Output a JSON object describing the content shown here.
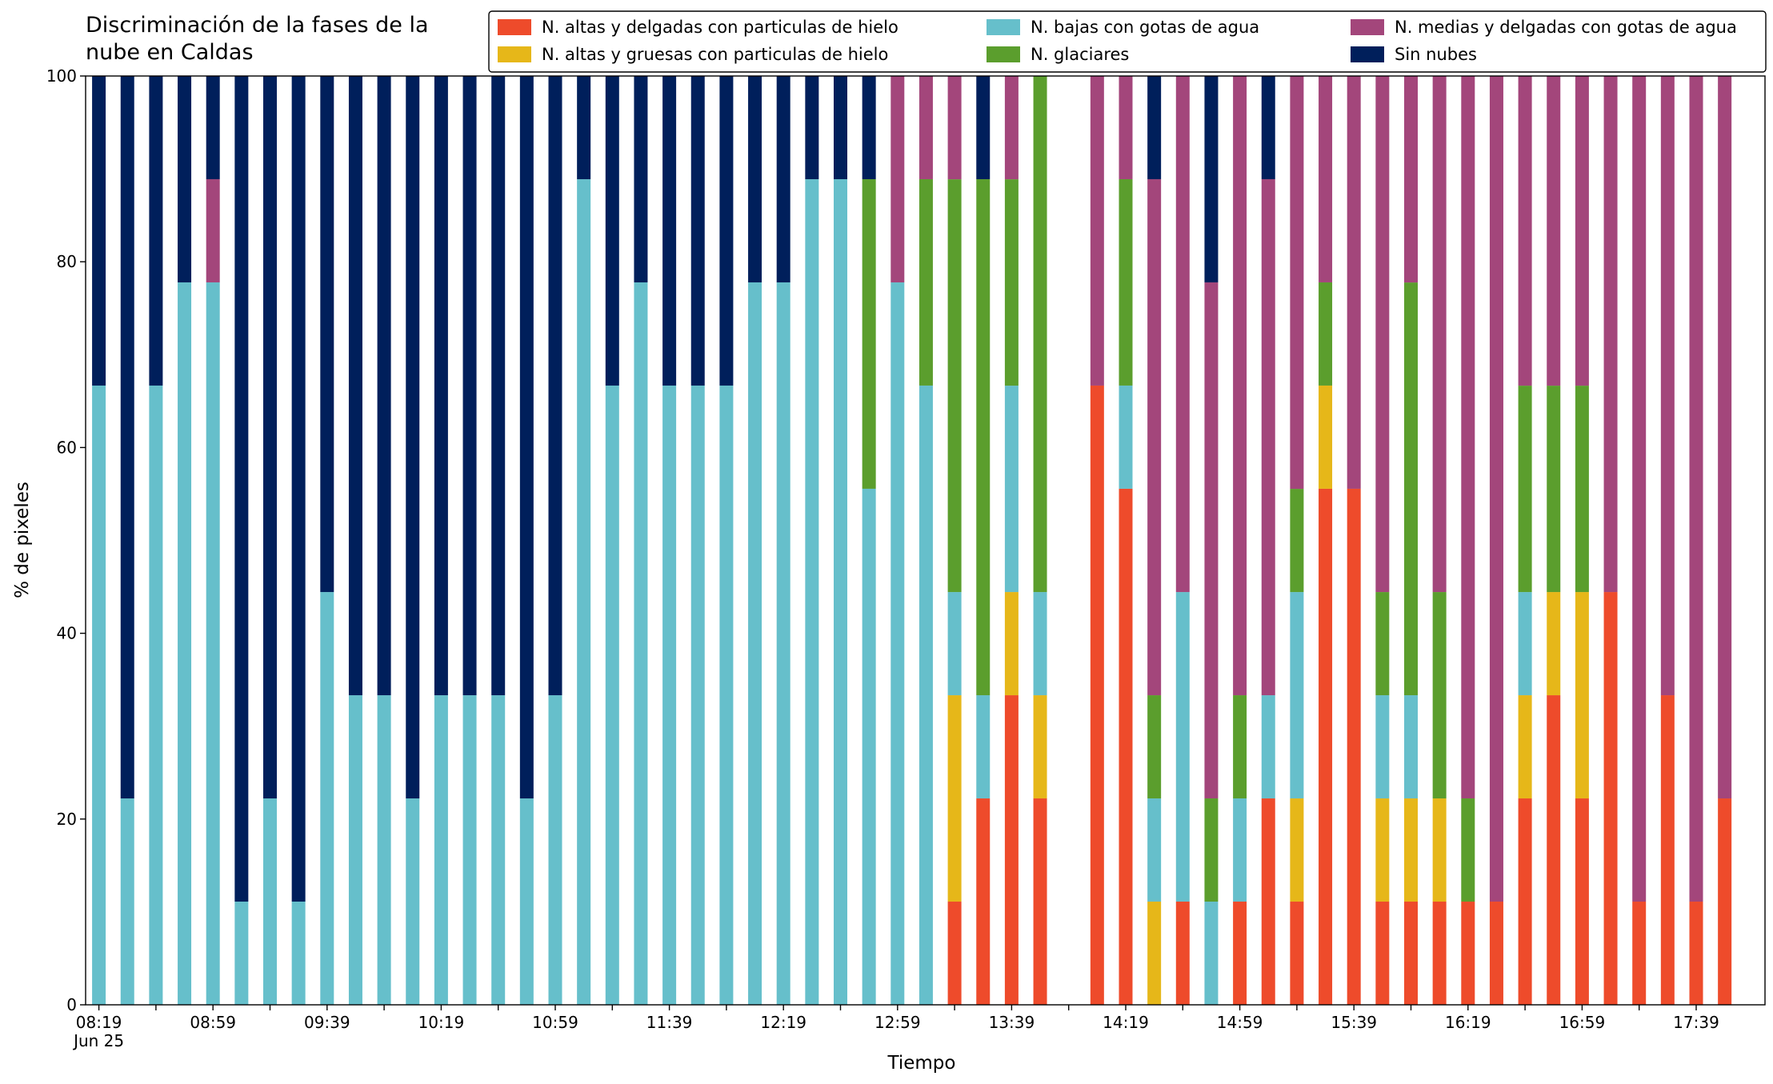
{
  "chart_data": {
    "type": "stacked_bar",
    "title": [
      "Discriminación de la fases de la",
      "nube en Caldas"
    ],
    "xlabel": "Tiempo",
    "ylabel": "% de pixeles",
    "x_date_label": "Jun 25",
    "categories": [
      "08:19",
      null,
      null,
      null,
      "08:59",
      null,
      null,
      null,
      "09:39",
      null,
      null,
      null,
      "10:19",
      null,
      null,
      null,
      "10:59",
      null,
      null,
      null,
      "11:39",
      null,
      null,
      null,
      "12:19",
      null,
      null,
      null,
      "12:59",
      null,
      null,
      null,
      "13:39",
      null,
      null,
      null,
      "14:19",
      null,
      null,
      null,
      "14:59",
      null,
      null,
      null,
      "15:39",
      null,
      null,
      null,
      "16:19",
      null,
      null,
      null,
      "16:59",
      null,
      null,
      null,
      "17:39",
      null
    ],
    "ylim": [
      0,
      100
    ],
    "yticks": [
      0,
      20,
      40,
      60,
      80,
      100
    ],
    "legend": "upper right",
    "series": [
      {
        "name": "N. altas y delgadas con particulas de hielo",
        "color": "#ee4b2b",
        "values": [
          0,
          0,
          0,
          0,
          0,
          0,
          0,
          0,
          0,
          0,
          0,
          0,
          0,
          0,
          0,
          0,
          0,
          0,
          0,
          0,
          0,
          0,
          0,
          0,
          0,
          0,
          0,
          0,
          0,
          0,
          11.11,
          22.22,
          33.33,
          22.22,
          null,
          66.67,
          55.56,
          0,
          11.11,
          0,
          11.11,
          22.22,
          11.11,
          55.56,
          55.56,
          11.11,
          11.11,
          11.11,
          11.11,
          11.11,
          22.22,
          33.33,
          22.22,
          44.44,
          11.11,
          33.33,
          11.11,
          22.22
        ]
      },
      {
        "name": "N. altas y gruesas con particulas de hielo",
        "color": "#e6b719",
        "values": [
          0,
          0,
          0,
          0,
          0,
          0,
          0,
          0,
          0,
          0,
          0,
          0,
          0,
          0,
          0,
          0,
          0,
          0,
          0,
          0,
          0,
          0,
          0,
          0,
          0,
          0,
          0,
          0,
          0,
          0,
          22.22,
          0,
          11.11,
          11.11,
          null,
          0,
          0,
          11.11,
          0,
          0,
          0,
          0,
          11.11,
          11.11,
          0,
          11.11,
          11.11,
          11.11,
          0,
          0,
          11.11,
          11.11,
          22.22,
          0,
          0,
          0,
          0,
          0
        ]
      },
      {
        "name": "N. bajas con gotas de agua",
        "color": "#66bfcb",
        "values": [
          66.67,
          22.22,
          66.67,
          77.78,
          77.78,
          11.11,
          22.22,
          11.11,
          44.44,
          33.33,
          33.33,
          22.22,
          33.33,
          33.33,
          33.33,
          22.22,
          33.33,
          88.89,
          66.67,
          77.78,
          66.67,
          66.67,
          66.67,
          77.78,
          77.78,
          88.89,
          88.89,
          55.56,
          77.78,
          66.67,
          11.11,
          11.11,
          22.22,
          11.11,
          null,
          0,
          11.11,
          11.11,
          33.33,
          11.11,
          11.11,
          11.11,
          22.22,
          0,
          0,
          11.11,
          11.11,
          0,
          0,
          0,
          11.11,
          0,
          0,
          0,
          0,
          0,
          0,
          0
        ]
      },
      {
        "name": "N. glaciares",
        "color": "#5b9e2d",
        "values": [
          0,
          0,
          0,
          0,
          0,
          0,
          0,
          0,
          0,
          0,
          0,
          0,
          0,
          0,
          0,
          0,
          0,
          0,
          0,
          0,
          0,
          0,
          0,
          0,
          0,
          0,
          0,
          33.33,
          0,
          22.22,
          44.44,
          55.56,
          22.22,
          55.56,
          null,
          0,
          22.22,
          11.11,
          0,
          11.11,
          11.11,
          0,
          11.11,
          11.11,
          0,
          11.11,
          44.44,
          22.22,
          11.11,
          0,
          22.22,
          22.22,
          22.22,
          0,
          0,
          0,
          0,
          0
        ]
      },
      {
        "name": "N. medias y delgadas con gotas de agua",
        "color": "#a3467b",
        "values": [
          0,
          0,
          0,
          0,
          11.11,
          0,
          0,
          0,
          0,
          0,
          0,
          0,
          0,
          0,
          0,
          0,
          0,
          0,
          0,
          0,
          0,
          0,
          0,
          0,
          0,
          0,
          0,
          0,
          22.22,
          11.11,
          11.11,
          0,
          11.11,
          0,
          null,
          33.33,
          11.11,
          55.56,
          55.56,
          55.56,
          66.67,
          55.56,
          44.44,
          22.22,
          44.44,
          55.56,
          22.22,
          55.56,
          77.78,
          88.89,
          33.33,
          33.33,
          33.33,
          55.56,
          88.89,
          66.67,
          88.89,
          77.78
        ]
      },
      {
        "name": "Sin nubes",
        "color": "#001f5b",
        "values": [
          33.33,
          77.78,
          33.33,
          22.22,
          11.11,
          88.89,
          77.78,
          88.89,
          55.56,
          66.67,
          66.67,
          77.78,
          66.67,
          66.67,
          66.67,
          77.78,
          66.67,
          11.11,
          33.33,
          22.22,
          33.33,
          33.33,
          33.33,
          22.22,
          22.22,
          11.11,
          11.11,
          11.11,
          0,
          0,
          0,
          11.11,
          0,
          0,
          null,
          0,
          0,
          11.11,
          0,
          22.22,
          0,
          11.11,
          0,
          0,
          0,
          0,
          0,
          0,
          0,
          0,
          0,
          0,
          0,
          0,
          0,
          0,
          0,
          0
        ]
      }
    ]
  }
}
